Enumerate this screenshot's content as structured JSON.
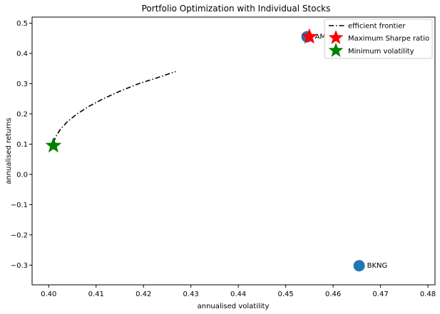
{
  "chart_data": {
    "type": "scatter",
    "title": "Portfolio Optimization with Individual Stocks",
    "xlabel": "annualised volatility",
    "ylabel": "annualised returns",
    "xlim": [
      0.3965,
      0.4815
    ],
    "ylim": [
      -0.365,
      0.52
    ],
    "xticks": [
      0.4,
      0.41,
      0.42,
      0.43,
      0.44,
      0.45,
      0.46,
      0.47,
      0.48
    ],
    "xtick_labels": [
      "0.40",
      "0.41",
      "0.42",
      "0.43",
      "0.44",
      "0.45",
      "0.46",
      "0.47",
      "0.48"
    ],
    "yticks": [
      -0.3,
      -0.2,
      -0.1,
      0.0,
      0.1,
      0.2,
      0.3,
      0.4,
      0.5
    ],
    "ytick_labels": [
      "−0.3",
      "−0.2",
      "−0.1",
      "0.0",
      "0.1",
      "0.2",
      "0.3",
      "0.4",
      "0.5"
    ],
    "grid": false,
    "legend_position": "top-right",
    "stocks": [
      {
        "label": "AMZN",
        "visible_label": "AM",
        "x": 0.4545,
        "y": 0.455,
        "color": "#1f77b4"
      },
      {
        "label": "BKNG",
        "visible_label": "BKNG",
        "x": 0.4655,
        "y": -0.302,
        "color": "#1f77b4"
      }
    ],
    "efficient_frontier": {
      "name": "efficient frontier",
      "color": "#000000",
      "style": "dashdot",
      "x": [
        0.401,
        0.4015,
        0.4025,
        0.404,
        0.406,
        0.4085,
        0.4115,
        0.415,
        0.419,
        0.423,
        0.4268
      ],
      "y": [
        0.105,
        0.125,
        0.15,
        0.175,
        0.2,
        0.225,
        0.25,
        0.275,
        0.3,
        0.32,
        0.34
      ]
    },
    "max_sharpe": {
      "name": "Maximum Sharpe ratio",
      "x": 0.455,
      "y": 0.455,
      "color": "#ff0000"
    },
    "min_volatility": {
      "name": "Minimum volatility",
      "x": 0.401,
      "y": 0.095,
      "color": "#008000"
    }
  }
}
